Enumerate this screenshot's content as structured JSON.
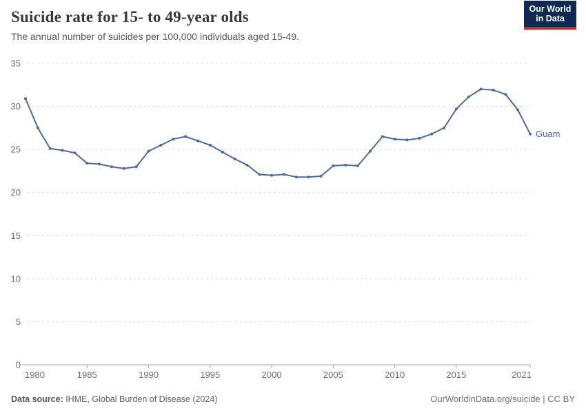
{
  "header": {
    "title": "Suicide rate for 15- to 49-year olds",
    "subtitle": "The annual number of suicides per 100,000 individuals aged 15-49."
  },
  "logo": {
    "line1": "Our World",
    "line2": "in Data",
    "bg_color": "#0D2A54",
    "accent_color": "#C0322B"
  },
  "chart_data": {
    "type": "line",
    "title": "Suicide rate for 15- to 49-year olds",
    "subtitle": "The annual number of suicides per 100,000 individuals aged 15-49.",
    "x": [
      1980,
      1981,
      1982,
      1983,
      1984,
      1985,
      1986,
      1987,
      1988,
      1989,
      1990,
      1991,
      1992,
      1993,
      1994,
      1995,
      1996,
      1997,
      1998,
      1999,
      2000,
      2001,
      2002,
      2003,
      2004,
      2005,
      2006,
      2007,
      2008,
      2009,
      2010,
      2011,
      2012,
      2013,
      2014,
      2015,
      2016,
      2017,
      2018,
      2019,
      2020,
      2021
    ],
    "series": [
      {
        "name": "Guam",
        "color": "#4C6A9C",
        "values": [
          30.9,
          27.5,
          25.1,
          24.9,
          24.6,
          23.4,
          23.3,
          23.0,
          22.8,
          23.0,
          24.8,
          25.5,
          26.2,
          26.5,
          26.0,
          25.5,
          24.7,
          23.9,
          23.2,
          22.1,
          22.0,
          22.1,
          21.8,
          21.8,
          21.9,
          23.1,
          23.2,
          23.1,
          24.8,
          26.5,
          26.2,
          26.1,
          26.3,
          26.8,
          27.5,
          29.7,
          31.1,
          32.0,
          31.9,
          31.4,
          29.6,
          26.8
        ]
      }
    ],
    "xlabel": "",
    "ylabel": "",
    "ylim": [
      0,
      35
    ],
    "xlim": [
      1980,
      2021
    ],
    "yticks": [
      0,
      5,
      10,
      15,
      20,
      25,
      30,
      35
    ],
    "xticks": [
      1980,
      1985,
      1990,
      1995,
      2000,
      2005,
      2010,
      2015,
      2021
    ],
    "grid": "horizontal-dashed",
    "legend_position": "end-of-line-label",
    "end_label": "Guam",
    "colors": {
      "line": "#4C6A9C",
      "gridline": "#dcdcdc",
      "axis": "#a6a6a6",
      "tick_label": "#6e6e6e"
    }
  },
  "footer": {
    "source_label": "Data source:",
    "source_text": " IHME, Global Burden of Disease (2024)",
    "rights": "OurWorldinData.org/suicide | CC BY"
  }
}
